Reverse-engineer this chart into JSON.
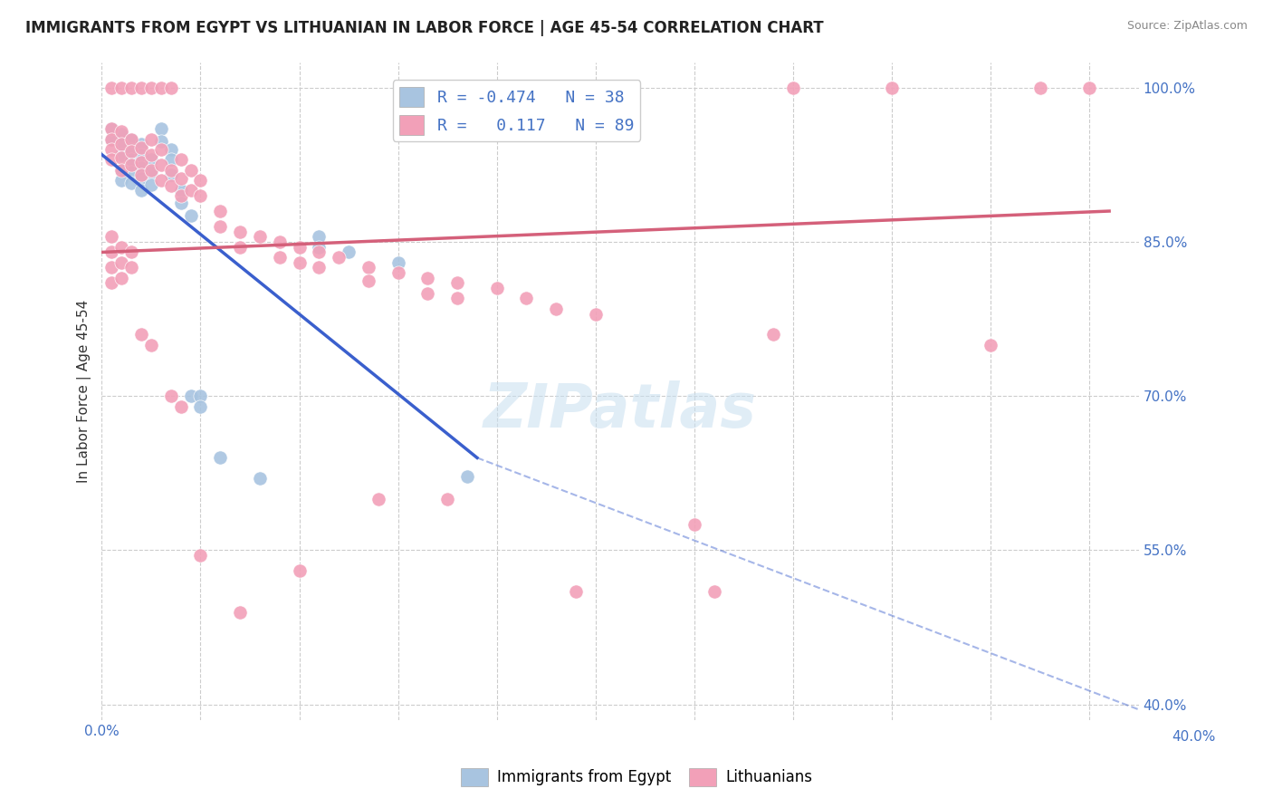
{
  "title": "IMMIGRANTS FROM EGYPT VS LITHUANIAN IN LABOR FORCE | AGE 45-54 CORRELATION CHART",
  "source": "Source: ZipAtlas.com",
  "ylabel": "In Labor Force | Age 45-54",
  "xlim": [
    0.0,
    0.105
  ],
  "ylim": [
    0.385,
    1.025
  ],
  "y_ticks_right": [
    1.0,
    0.85,
    0.7,
    0.55,
    0.4
  ],
  "y_tick_labels_right": [
    "100.0%",
    "85.0%",
    "70.0%",
    "55.0%",
    "40.0%"
  ],
  "legend_r_egypt": "-0.474",
  "legend_n_egypt": "38",
  "legend_r_lith": "0.117",
  "legend_n_lith": "89",
  "egypt_color": "#a8c4e0",
  "lith_color": "#f2a0b8",
  "egypt_line_color": "#3a5fcd",
  "lith_line_color": "#d4607a",
  "background_color": "#ffffff",
  "grid_color": "#cccccc",
  "egypt_dots": [
    [
      0.001,
      0.96
    ],
    [
      0.001,
      0.95
    ],
    [
      0.002,
      0.955
    ],
    [
      0.002,
      0.945
    ],
    [
      0.002,
      0.935
    ],
    [
      0.002,
      0.92
    ],
    [
      0.002,
      0.91
    ],
    [
      0.003,
      0.95
    ],
    [
      0.003,
      0.94
    ],
    [
      0.003,
      0.93
    ],
    [
      0.003,
      0.918
    ],
    [
      0.003,
      0.907
    ],
    [
      0.004,
      0.945
    ],
    [
      0.004,
      0.935
    ],
    [
      0.004,
      0.922
    ],
    [
      0.004,
      0.912
    ],
    [
      0.004,
      0.9
    ],
    [
      0.005,
      0.93
    ],
    [
      0.005,
      0.918
    ],
    [
      0.005,
      0.906
    ],
    [
      0.006,
      0.96
    ],
    [
      0.006,
      0.948
    ],
    [
      0.007,
      0.94
    ],
    [
      0.007,
      0.93
    ],
    [
      0.007,
      0.915
    ],
    [
      0.008,
      0.9
    ],
    [
      0.008,
      0.888
    ],
    [
      0.009,
      0.876
    ],
    [
      0.009,
      0.7
    ],
    [
      0.01,
      0.7
    ],
    [
      0.01,
      0.69
    ],
    [
      0.012,
      0.64
    ],
    [
      0.016,
      0.62
    ],
    [
      0.022,
      0.855
    ],
    [
      0.022,
      0.845
    ],
    [
      0.025,
      0.84
    ],
    [
      0.03,
      0.83
    ],
    [
      0.037,
      0.622
    ]
  ],
  "lith_dots": [
    [
      0.001,
      1.0
    ],
    [
      0.002,
      1.0
    ],
    [
      0.003,
      1.0
    ],
    [
      0.004,
      1.0
    ],
    [
      0.005,
      1.0
    ],
    [
      0.006,
      1.0
    ],
    [
      0.007,
      1.0
    ],
    [
      0.07,
      1.0
    ],
    [
      0.08,
      1.0
    ],
    [
      0.095,
      1.0
    ],
    [
      0.1,
      1.0
    ],
    [
      0.001,
      0.96
    ],
    [
      0.001,
      0.95
    ],
    [
      0.001,
      0.94
    ],
    [
      0.001,
      0.93
    ],
    [
      0.002,
      0.958
    ],
    [
      0.002,
      0.945
    ],
    [
      0.002,
      0.932
    ],
    [
      0.002,
      0.92
    ],
    [
      0.003,
      0.95
    ],
    [
      0.003,
      0.938
    ],
    [
      0.003,
      0.925
    ],
    [
      0.004,
      0.942
    ],
    [
      0.004,
      0.928
    ],
    [
      0.004,
      0.915
    ],
    [
      0.005,
      0.95
    ],
    [
      0.005,
      0.935
    ],
    [
      0.005,
      0.92
    ],
    [
      0.006,
      0.94
    ],
    [
      0.006,
      0.925
    ],
    [
      0.006,
      0.91
    ],
    [
      0.007,
      0.92
    ],
    [
      0.007,
      0.905
    ],
    [
      0.008,
      0.93
    ],
    [
      0.008,
      0.912
    ],
    [
      0.008,
      0.895
    ],
    [
      0.009,
      0.92
    ],
    [
      0.009,
      0.9
    ],
    [
      0.01,
      0.91
    ],
    [
      0.01,
      0.895
    ],
    [
      0.012,
      0.88
    ],
    [
      0.012,
      0.865
    ],
    [
      0.014,
      0.86
    ],
    [
      0.014,
      0.845
    ],
    [
      0.016,
      0.855
    ],
    [
      0.018,
      0.85
    ],
    [
      0.018,
      0.835
    ],
    [
      0.02,
      0.845
    ],
    [
      0.02,
      0.83
    ],
    [
      0.022,
      0.84
    ],
    [
      0.022,
      0.825
    ],
    [
      0.024,
      0.835
    ],
    [
      0.027,
      0.825
    ],
    [
      0.027,
      0.812
    ],
    [
      0.03,
      0.82
    ],
    [
      0.033,
      0.815
    ],
    [
      0.033,
      0.8
    ],
    [
      0.036,
      0.81
    ],
    [
      0.036,
      0.795
    ],
    [
      0.04,
      0.805
    ],
    [
      0.043,
      0.795
    ],
    [
      0.046,
      0.785
    ],
    [
      0.05,
      0.78
    ],
    [
      0.001,
      0.855
    ],
    [
      0.001,
      0.84
    ],
    [
      0.001,
      0.825
    ],
    [
      0.001,
      0.81
    ],
    [
      0.002,
      0.845
    ],
    [
      0.002,
      0.83
    ],
    [
      0.002,
      0.815
    ],
    [
      0.003,
      0.84
    ],
    [
      0.003,
      0.825
    ],
    [
      0.004,
      0.76
    ],
    [
      0.005,
      0.75
    ],
    [
      0.007,
      0.7
    ],
    [
      0.008,
      0.69
    ],
    [
      0.01,
      0.545
    ],
    [
      0.014,
      0.49
    ],
    [
      0.02,
      0.53
    ],
    [
      0.028,
      0.6
    ],
    [
      0.035,
      0.6
    ],
    [
      0.048,
      0.51
    ],
    [
      0.06,
      0.575
    ],
    [
      0.062,
      0.51
    ],
    [
      0.068,
      0.76
    ],
    [
      0.09,
      0.75
    ]
  ],
  "egypt_trend_x": [
    0.0,
    0.038
  ],
  "egypt_trend_y": [
    0.935,
    0.64
  ],
  "lith_trend_x": [
    0.0,
    0.102
  ],
  "lith_trend_y": [
    0.84,
    0.88
  ],
  "dashed_trend_x": [
    0.038,
    0.105
  ],
  "dashed_trend_y": [
    0.64,
    0.395
  ]
}
